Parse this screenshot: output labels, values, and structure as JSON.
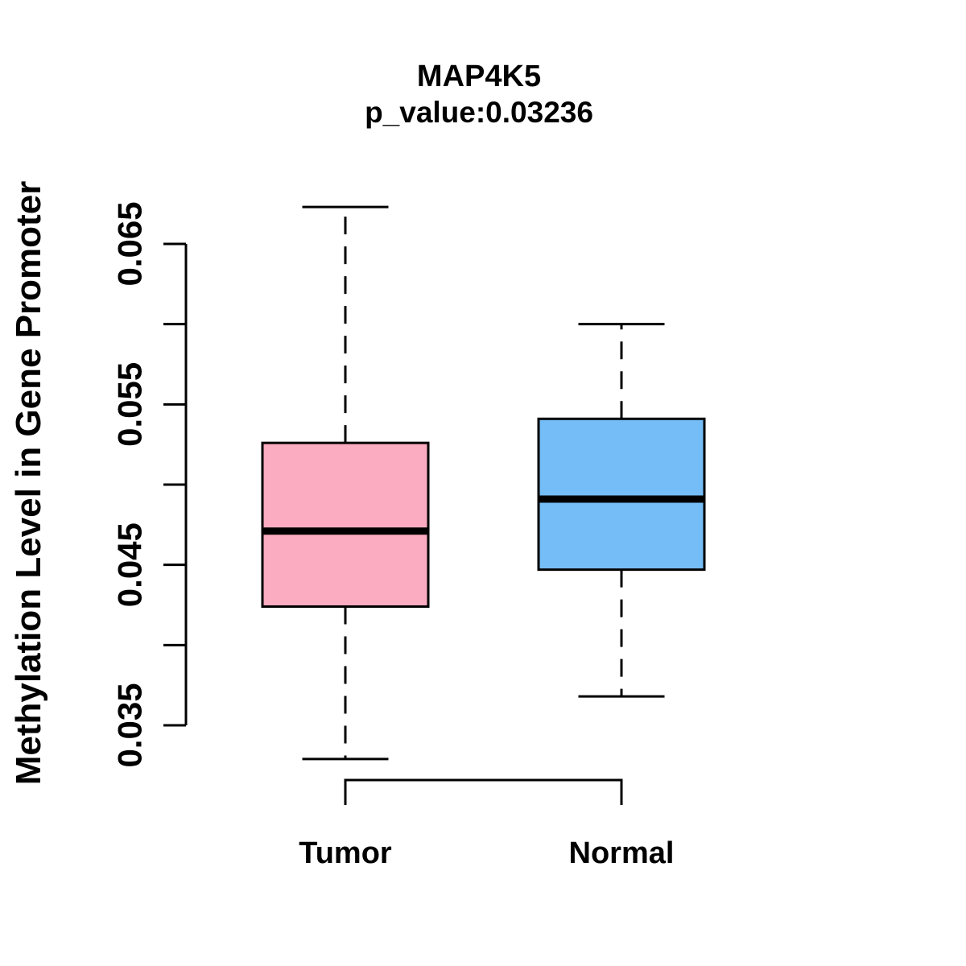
{
  "title": "MAP4K5",
  "subtitle": "p_value:0.03236",
  "chart_data": {
    "type": "boxplot",
    "title": "MAP4K5",
    "subtitle": "p_value:0.03236",
    "ylabel": "Methylation Level in Gene Promoter",
    "xlabel": "",
    "categories": [
      "Tumor",
      "Normal"
    ],
    "series": [
      {
        "name": "Tumor",
        "fill": "#FCACC0",
        "whisker_low": 0.0329,
        "q1": 0.0424,
        "median": 0.0471,
        "q3": 0.0526,
        "whisker_high": 0.0673
      },
      {
        "name": "Normal",
        "fill": "#75BDF7",
        "whisker_low": 0.0368,
        "q1": 0.0447,
        "median": 0.0491,
        "q3": 0.0541,
        "whisker_high": 0.06
      }
    ],
    "y_axis": {
      "range": [
        0.035,
        0.065
      ],
      "tick_step": 0.005,
      "tick_labels": [
        "0.035",
        "",
        "0.045",
        "",
        "0.055",
        "",
        "0.065"
      ]
    },
    "grid": false,
    "legend": false,
    "annotations": {
      "comparison_bracket_between": [
        "Tumor",
        "Normal"
      ]
    }
  },
  "colors": {
    "tumor_box": "#FCACC0",
    "normal_box": "#75BDF7",
    "stroke": "#000000",
    "background": "#FFFFFF"
  }
}
